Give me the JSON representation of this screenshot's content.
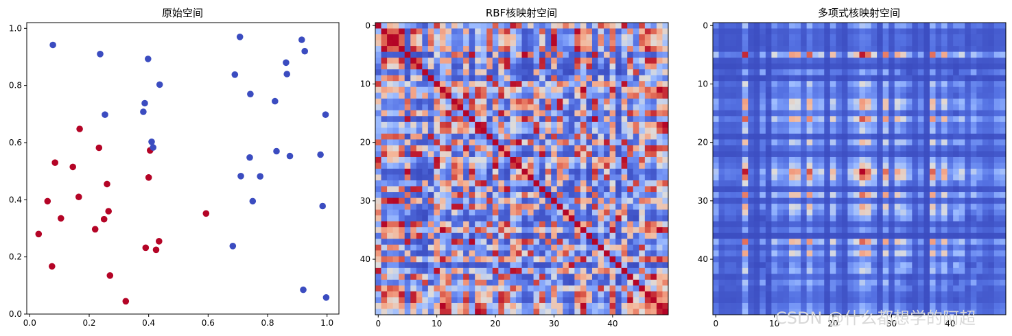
{
  "watermark": "CSDN @什么都想学的阿超",
  "chart_data": [
    {
      "type": "scatter",
      "title": "原始空间",
      "xlabel": "",
      "ylabel": "",
      "xlim": [
        -0.01,
        1.04
      ],
      "ylim": [
        0.0,
        1.02
      ],
      "xticks": [
        0.0,
        0.2,
        0.4,
        0.6,
        0.8,
        1.0
      ],
      "xtick_labels": [
        "0.0",
        "0.2",
        "0.4",
        "0.6",
        "0.8",
        "1.0"
      ],
      "yticks": [
        0.0,
        0.2,
        0.4,
        0.6,
        0.8,
        1.0
      ],
      "ytick_labels": [
        "0.0",
        "0.2",
        "0.4",
        "0.6",
        "0.8",
        "1.0"
      ],
      "grid": false,
      "series": [
        {
          "color": "#b40426",
          "points": [
            [
              0.03,
              0.28
            ],
            [
              0.06,
              0.395
            ],
            [
              0.075,
              0.167
            ],
            [
              0.085,
              0.53
            ],
            [
              0.105,
              0.335
            ],
            [
              0.145,
              0.515
            ],
            [
              0.165,
              0.41
            ],
            [
              0.168,
              0.648
            ],
            [
              0.22,
              0.297
            ],
            [
              0.233,
              0.582
            ],
            [
              0.25,
              0.332
            ],
            [
              0.26,
              0.455
            ],
            [
              0.265,
              0.36
            ],
            [
              0.27,
              0.135
            ],
            [
              0.323,
              0.045
            ],
            [
              0.39,
              0.232
            ],
            [
              0.4,
              0.478
            ],
            [
              0.405,
              0.573
            ],
            [
              0.425,
              0.225
            ],
            [
              0.435,
              0.255
            ],
            [
              0.593,
              0.352
            ]
          ]
        },
        {
          "color": "#3b4cc0",
          "points": [
            [
              0.078,
              0.942
            ],
            [
              0.237,
              0.91
            ],
            [
              0.253,
              0.698
            ],
            [
              0.382,
              0.708
            ],
            [
              0.387,
              0.738
            ],
            [
              0.398,
              0.893
            ],
            [
              0.41,
              0.603
            ],
            [
              0.415,
              0.583
            ],
            [
              0.437,
              0.803
            ],
            [
              0.683,
              0.238
            ],
            [
              0.69,
              0.838
            ],
            [
              0.707,
              0.97
            ],
            [
              0.71,
              0.483
            ],
            [
              0.74,
              0.548
            ],
            [
              0.742,
              0.77
            ],
            [
              0.75,
              0.395
            ],
            [
              0.775,
              0.482
            ],
            [
              0.825,
              0.745
            ],
            [
              0.83,
              0.57
            ],
            [
              0.862,
              0.88
            ],
            [
              0.865,
              0.84
            ],
            [
              0.875,
              0.553
            ],
            [
              0.915,
              0.96
            ],
            [
              0.92,
              0.085
            ],
            [
              0.925,
              0.92
            ],
            [
              0.978,
              0.558
            ],
            [
              0.985,
              0.378
            ],
            [
              0.995,
              0.698
            ],
            [
              0.997,
              0.058
            ]
          ]
        }
      ]
    },
    {
      "type": "heatmap",
      "title": "RBF核映射空间",
      "colormap": "coolwarm",
      "size": 50,
      "vmin": 0,
      "vmax": 1,
      "xticks": [
        0,
        10,
        20,
        30,
        40
      ],
      "xtick_labels": [
        "0",
        "10",
        "20",
        "30",
        "40"
      ],
      "yticks": [
        0,
        10,
        20,
        30,
        40
      ],
      "ytick_labels": [
        "0",
        "10",
        "20",
        "30",
        "40"
      ],
      "description_of_values": "50x50 symmetric kernel matrix, diagonal = 1"
    },
    {
      "type": "heatmap",
      "title": "多项式核映射空间",
      "colormap": "coolwarm",
      "size": 50,
      "xticks": [
        0,
        10,
        20,
        30,
        40
      ],
      "xtick_labels": [
        "0",
        "10",
        "20",
        "30",
        "40"
      ],
      "yticks": [
        0,
        10,
        20,
        30,
        40
      ],
      "ytick_labels": [
        "0",
        "10",
        "20",
        "30",
        "40"
      ]
    }
  ]
}
